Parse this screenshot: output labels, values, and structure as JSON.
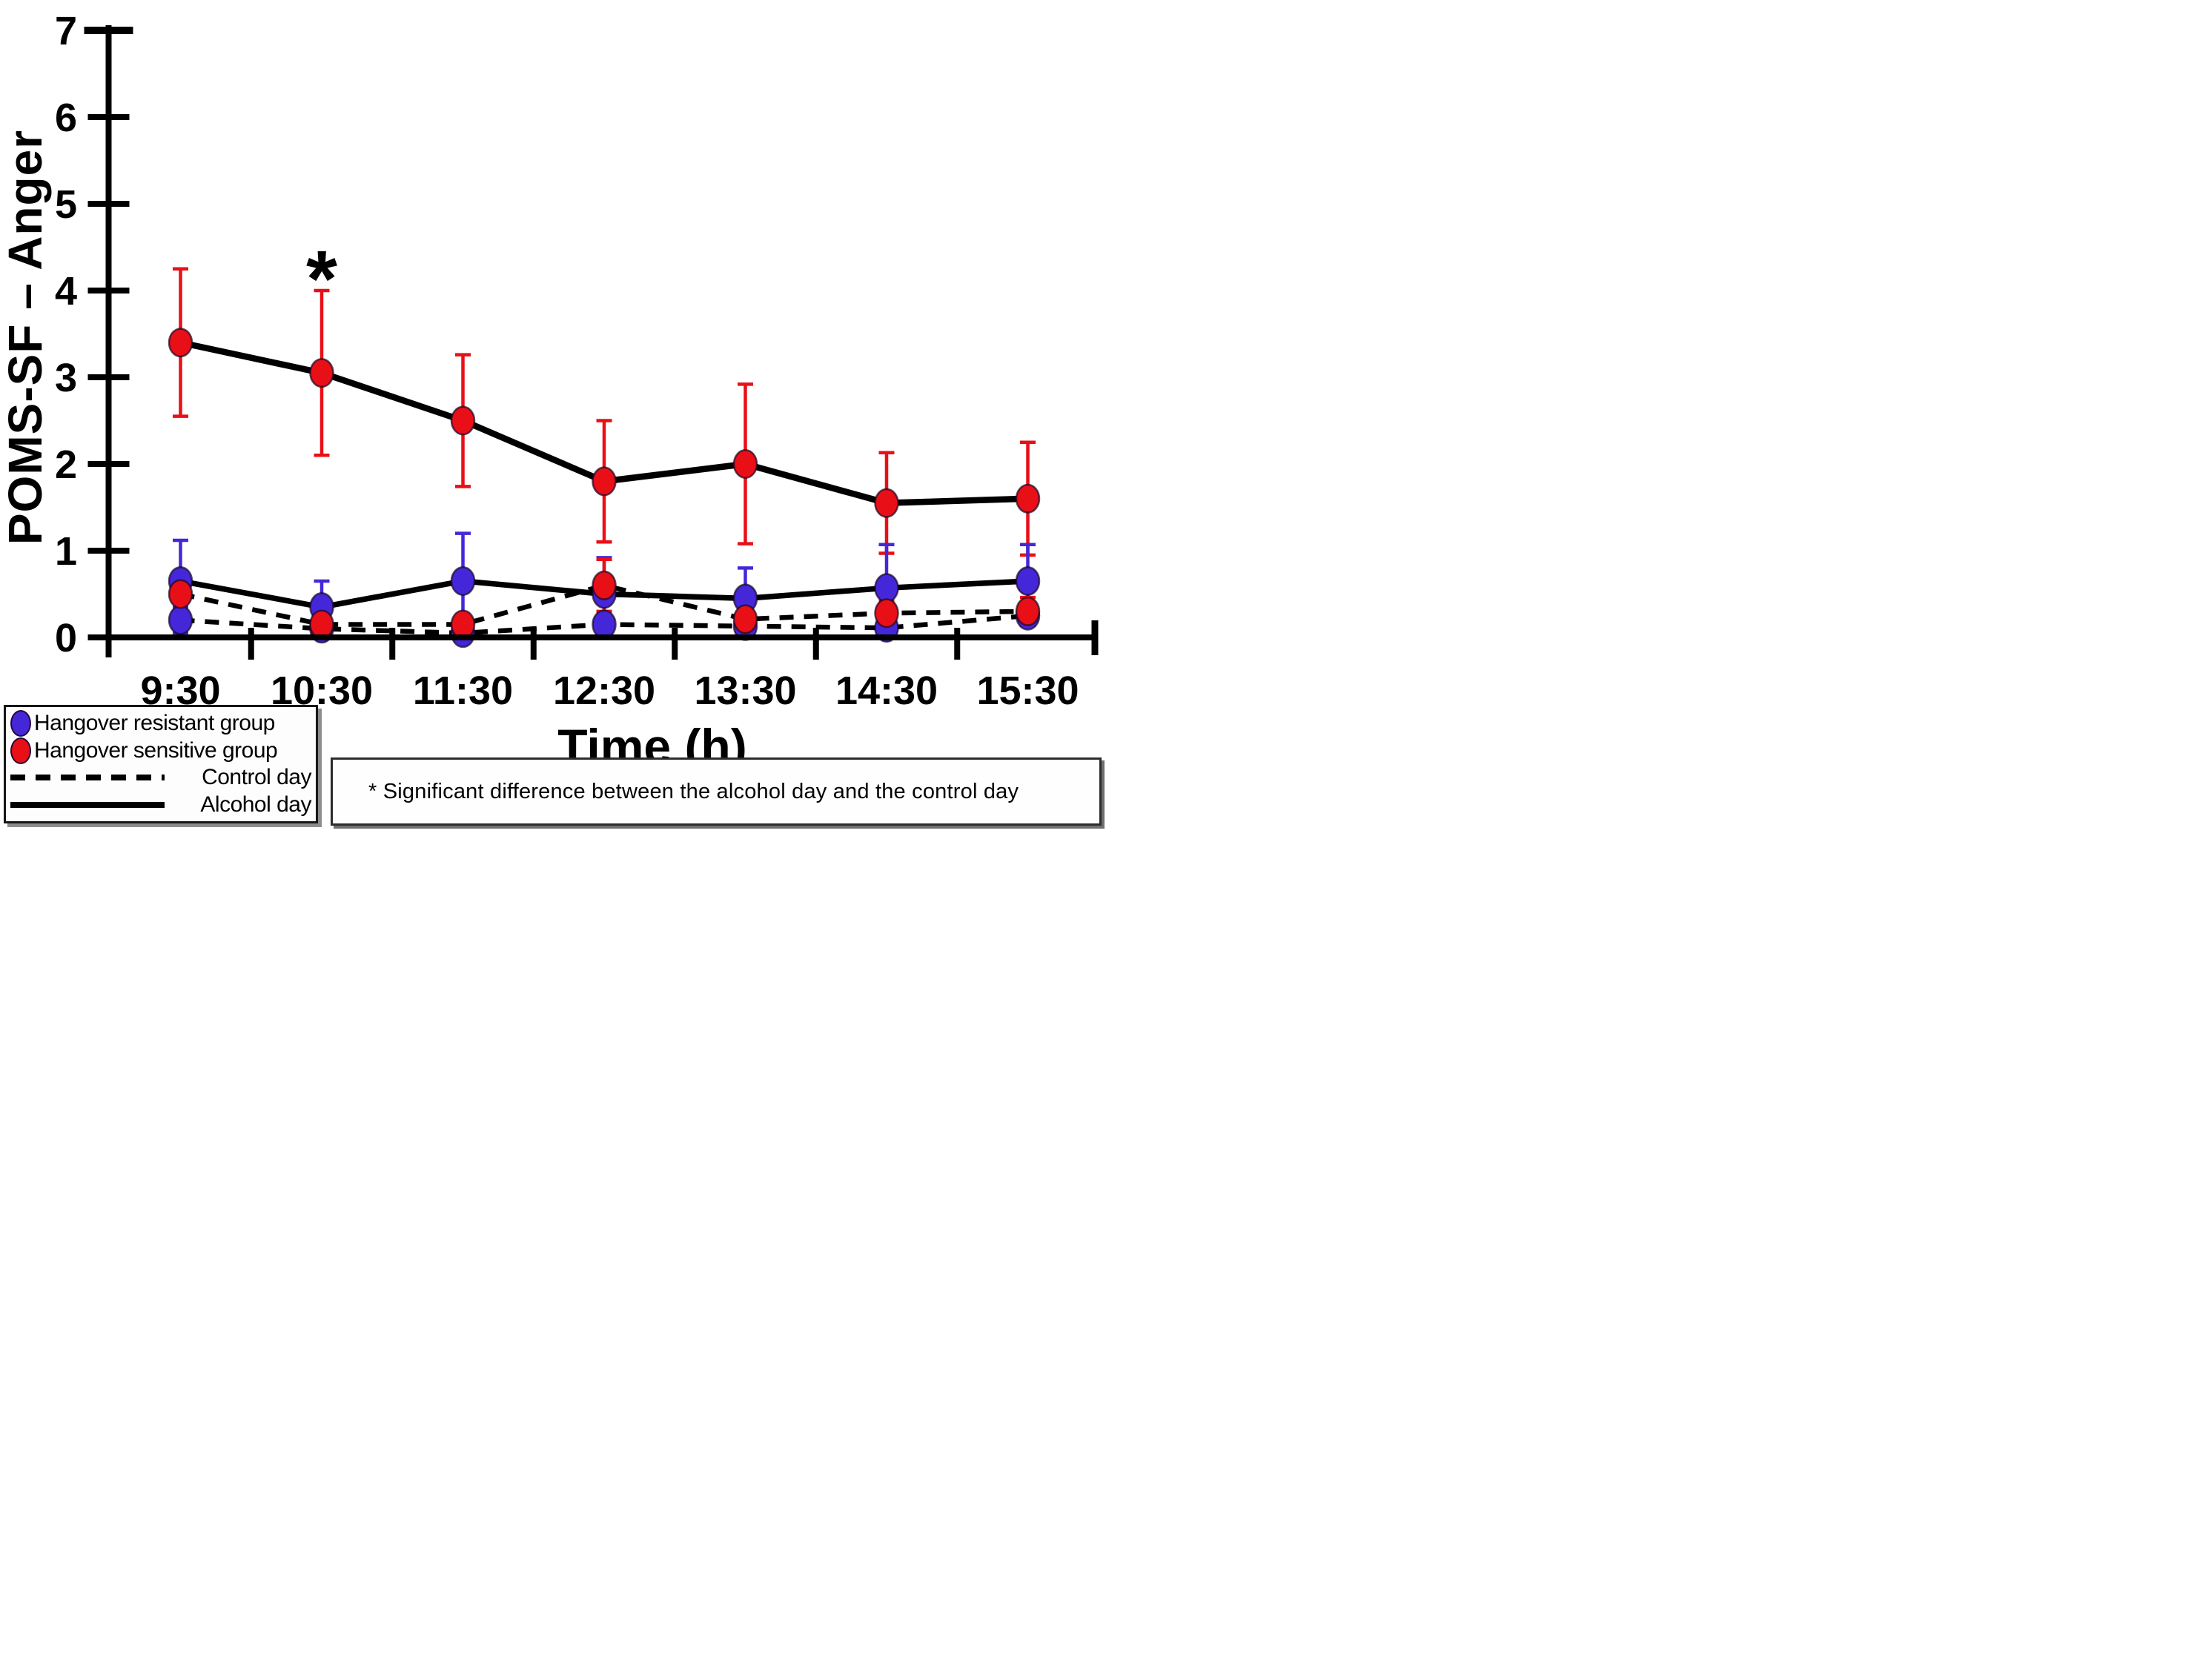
{
  "page": {
    "background": "#ffffff"
  },
  "chart_data": {
    "type": "line",
    "title": "",
    "xlabel": "Time (h)",
    "ylabel": "POMS-SF – Anger",
    "ylim": [
      0,
      7
    ],
    "y_ticks": [
      0,
      1,
      2,
      3,
      4,
      5,
      6,
      7
    ],
    "grid": false,
    "legend_position": "bottom-left",
    "line_color": "#000000",
    "categories": [
      "9:30",
      "10:30",
      "11:30",
      "12:30",
      "13:30",
      "14:30",
      "15:30"
    ],
    "series": [
      {
        "name": "Hangover sensitive group - Alcohol day",
        "group": "Hangover sensitive group",
        "day": "Alcohol day",
        "marker": "circle",
        "marker_color": "#e90f17",
        "line_style": "solid",
        "values": [
          3.4,
          3.05,
          2.5,
          1.8,
          2.0,
          1.55,
          1.6
        ],
        "errors": [
          0.85,
          0.95,
          0.76,
          0.7,
          0.92,
          0.58,
          0.65
        ]
      },
      {
        "name": "Hangover resistant group - Alcohol day",
        "group": "Hangover resistant group",
        "day": "Alcohol day",
        "marker": "circle",
        "marker_color": "#4527da",
        "line_style": "solid",
        "values": [
          0.65,
          0.35,
          0.65,
          0.5,
          0.45,
          0.57,
          0.65
        ],
        "errors": [
          0.47,
          0.3,
          0.55,
          0.42,
          0.35,
          0.5,
          0.42
        ]
      },
      {
        "name": "Hangover sensitive group - Control day",
        "group": "Hangover sensitive group",
        "day": "Control day",
        "marker": "circle",
        "marker_color": "#e90f17",
        "line_style": "dashed",
        "values": [
          0.5,
          0.15,
          0.15,
          0.6,
          0.21,
          0.28,
          0.3
        ],
        "errors": [
          0.25,
          0.1,
          0.1,
          0.3,
          0.15,
          0.14,
          0.16
        ]
      },
      {
        "name": "Hangover resistant group - Control day",
        "group": "Hangover resistant group",
        "day": "Control day",
        "marker": "circle",
        "marker_color": "#4527da",
        "line_style": "dashed",
        "values": [
          0.2,
          0.1,
          0.05,
          0.15,
          0.13,
          0.11,
          0.25
        ],
        "errors": [
          0.15,
          0.06,
          0.05,
          0.1,
          0.08,
          0.08,
          0.1
        ]
      }
    ],
    "significance_marks": [
      {
        "symbol": "*",
        "category": "10:30",
        "y_value": 4.35
      }
    ]
  },
  "legend": {
    "items": [
      {
        "type": "marker",
        "color": "#4527da",
        "label": "Hangover resistant group"
      },
      {
        "type": "marker",
        "color": "#e90f17",
        "label": "Hangover sensitive group"
      },
      {
        "type": "line",
        "style": "dashed",
        "color": "#000000",
        "label": "Control day"
      },
      {
        "type": "line",
        "style": "solid",
        "color": "#000000",
        "label": "Alcohol day"
      }
    ]
  },
  "footnote": {
    "text": "* Significant difference between the alcohol day and the control day"
  }
}
